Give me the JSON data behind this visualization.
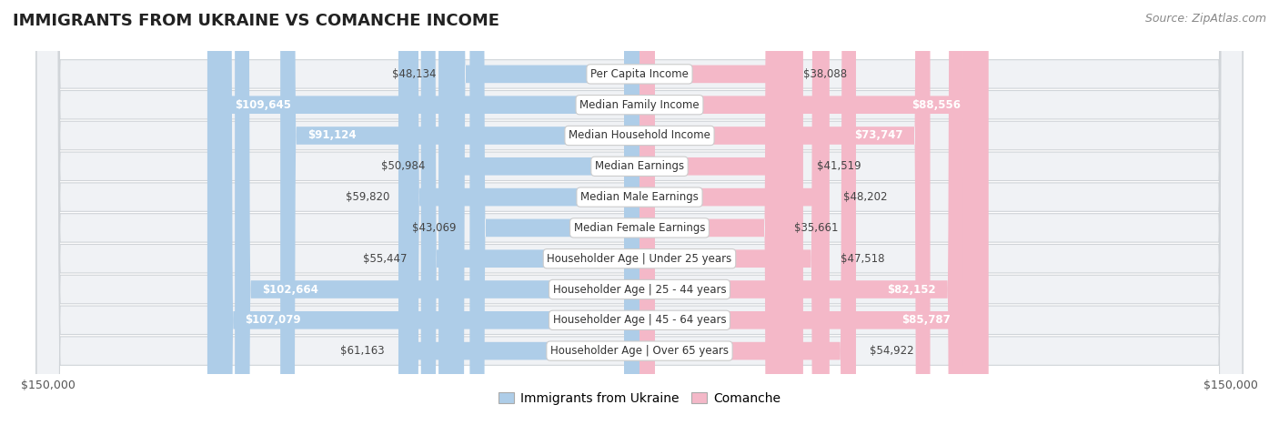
{
  "title": "IMMIGRANTS FROM UKRAINE VS COMANCHE INCOME",
  "source": "Source: ZipAtlas.com",
  "categories": [
    "Per Capita Income",
    "Median Family Income",
    "Median Household Income",
    "Median Earnings",
    "Median Male Earnings",
    "Median Female Earnings",
    "Householder Age | Under 25 years",
    "Householder Age | 25 - 44 years",
    "Householder Age | 45 - 64 years",
    "Householder Age | Over 65 years"
  ],
  "ukraine_values": [
    48134,
    109645,
    91124,
    50984,
    59820,
    43069,
    55447,
    102664,
    107079,
    61163
  ],
  "comanche_values": [
    38088,
    88556,
    73747,
    41519,
    48202,
    35661,
    47518,
    82152,
    85787,
    54922
  ],
  "ukraine_labels": [
    "$48,134",
    "$109,645",
    "$91,124",
    "$50,984",
    "$59,820",
    "$43,069",
    "$55,447",
    "$102,664",
    "$107,079",
    "$61,163"
  ],
  "comanche_labels": [
    "$38,088",
    "$88,556",
    "$73,747",
    "$41,519",
    "$48,202",
    "$35,661",
    "$47,518",
    "$82,152",
    "$85,787",
    "$54,922"
  ],
  "ukraine_color": "#7fb3d3",
  "comanche_color": "#f08080",
  "ukraine_color_light": "#aecde8",
  "comanche_color_light": "#f4b8c8",
  "max_value": 150000,
  "bar_height": 0.58,
  "row_bg_color": "#f0f2f5",
  "row_border_color": "#d0d4d8",
  "label_fontsize": 8.5,
  "value_fontsize": 8.5,
  "title_fontsize": 13,
  "source_fontsize": 9,
  "legend_fontsize": 10,
  "inside_label_threshold": 72000,
  "inside_label_threshold_comanche": 60000
}
